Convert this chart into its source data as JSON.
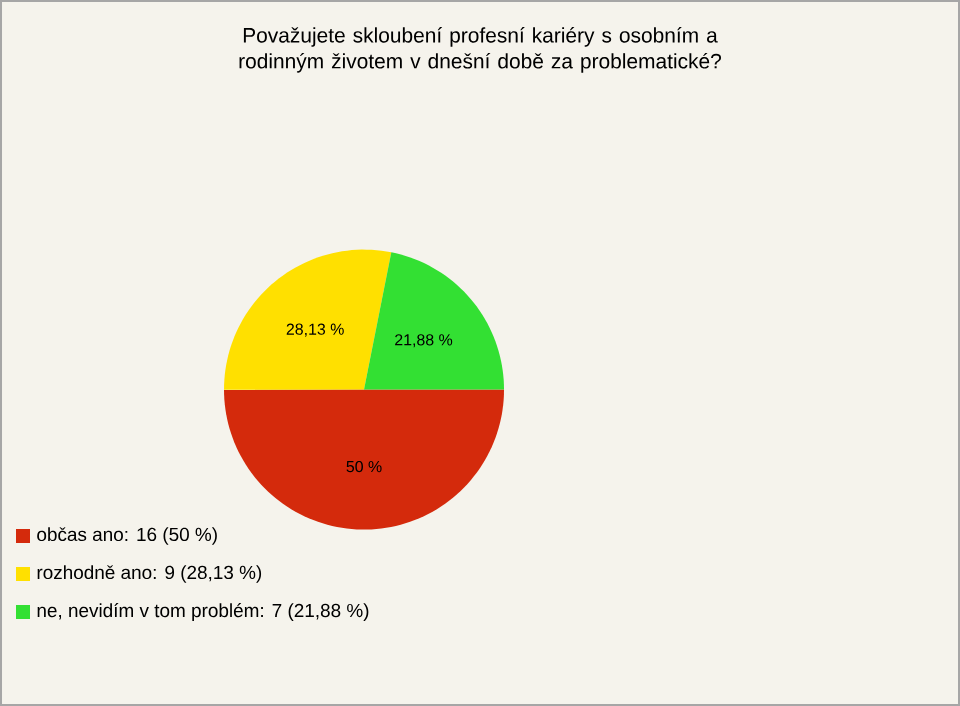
{
  "chart_data": {
    "type": "pie",
    "title": "Považujete skloubení profesní kariéry s osobním a rodinným životem v dnešní době za problematické?",
    "categories": [
      "občas ano: 16 (50 %)",
      "rozhodně ano: 9 (28,13 %)",
      "ne, nevidím v tom problém: 7 (21,88 %)"
    ],
    "values": [
      50,
      28.13,
      21.88
    ],
    "value_labels": [
      "50 %",
      "28,13 %",
      "21,88 %"
    ],
    "colors": [
      "#d42a0c",
      "#ffe000",
      "#33e033"
    ],
    "legend": "bottom left"
  }
}
